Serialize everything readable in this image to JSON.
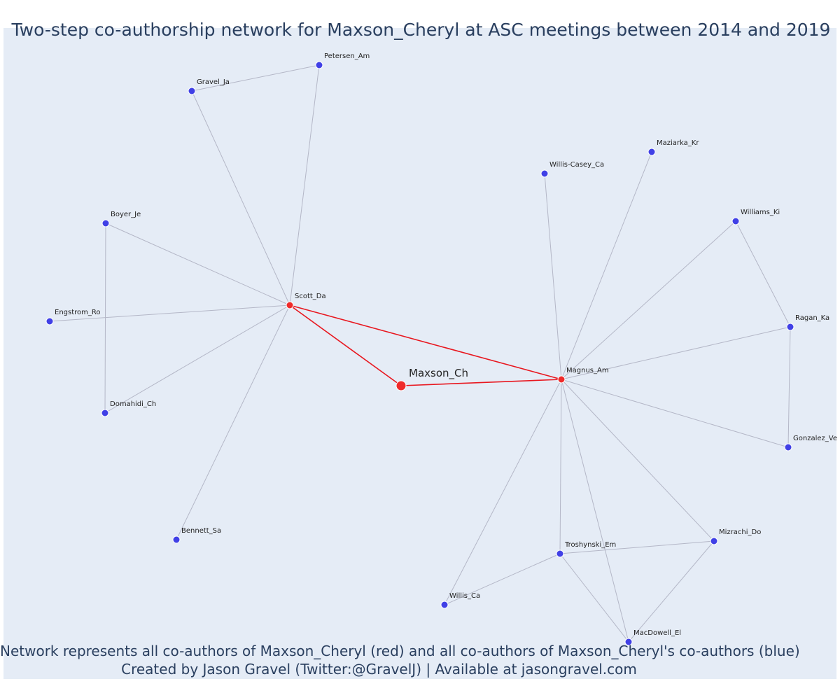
{
  "title": "Two-step co-authorship network for Maxson_Cheryl at ASC meetings between 2014 and 2019",
  "captions": {
    "line1": "Network represents all co-authors of Maxson_Cheryl (red) and all co-authors of Maxson_Cheryl's co-authors (blue)",
    "line2": "Created by Jason Gravel (Twitter:@GravelJ) | Available at jasongravel.com"
  },
  "colors": {
    "background": "#e5ecf6",
    "primary_node": "#ef2b2b",
    "coauthor_node": "#4040e6",
    "primary_edge": "#e8171f",
    "secondary_edge": "#b4b7c7",
    "text": "#2a3f5f"
  },
  "network": {
    "nodes": [
      {
        "id": "Maxson_Ch",
        "label": "Maxson_Ch",
        "group": "focal"
      },
      {
        "id": "Scott_Da",
        "label": "Scott_Da",
        "group": "coauthor"
      },
      {
        "id": "Magnus_Am",
        "label": "Magnus_Am",
        "group": "coauthor"
      },
      {
        "id": "Gravel_Ja",
        "label": "Gravel_Ja",
        "group": "second"
      },
      {
        "id": "Petersen_Am",
        "label": "Petersen_Am",
        "group": "second"
      },
      {
        "id": "Boyer_Je",
        "label": "Boyer_Je",
        "group": "second"
      },
      {
        "id": "Engstrom_Ro",
        "label": "Engstrom_Ro",
        "group": "second"
      },
      {
        "id": "Domahidi_Ch",
        "label": "Domahidi_Ch",
        "group": "second"
      },
      {
        "id": "Bennett_Sa",
        "label": "Bennett_Sa",
        "group": "second"
      },
      {
        "id": "Willis-Casey_Ca",
        "label": "Willis-Casey_Ca",
        "group": "second"
      },
      {
        "id": "Maziarka_Kr",
        "label": "Maziarka_Kr",
        "group": "second"
      },
      {
        "id": "Williams_Ki",
        "label": "Williams_Ki",
        "group": "second"
      },
      {
        "id": "Ragan_Ka",
        "label": "Ragan_Ka",
        "group": "second"
      },
      {
        "id": "Gonzalez_Ve",
        "label": "Gonzalez_Ve",
        "group": "second"
      },
      {
        "id": "Mizrachi_Do",
        "label": "Mizrachi_Do",
        "group": "second"
      },
      {
        "id": "Troshynski_Em",
        "label": "Troshynski_Em",
        "group": "second"
      },
      {
        "id": "Willis_Ca",
        "label": "Willis_Ca",
        "group": "second"
      },
      {
        "id": "MacDowell_El",
        "label": "MacDowell_El",
        "group": "second"
      }
    ],
    "edges": [
      {
        "from": "Maxson_Ch",
        "to": "Scott_Da",
        "type": "primary"
      },
      {
        "from": "Maxson_Ch",
        "to": "Magnus_Am",
        "type": "primary"
      },
      {
        "from": "Scott_Da",
        "to": "Magnus_Am",
        "type": "primary"
      },
      {
        "from": "Scott_Da",
        "to": "Gravel_Ja",
        "type": "secondary"
      },
      {
        "from": "Scott_Da",
        "to": "Petersen_Am",
        "type": "secondary"
      },
      {
        "from": "Gravel_Ja",
        "to": "Petersen_Am",
        "type": "secondary"
      },
      {
        "from": "Scott_Da",
        "to": "Boyer_Je",
        "type": "secondary"
      },
      {
        "from": "Scott_Da",
        "to": "Engstrom_Ro",
        "type": "secondary"
      },
      {
        "from": "Scott_Da",
        "to": "Domahidi_Ch",
        "type": "secondary"
      },
      {
        "from": "Boyer_Je",
        "to": "Domahidi_Ch",
        "type": "secondary"
      },
      {
        "from": "Scott_Da",
        "to": "Bennett_Sa",
        "type": "secondary"
      },
      {
        "from": "Magnus_Am",
        "to": "Willis-Casey_Ca",
        "type": "secondary"
      },
      {
        "from": "Magnus_Am",
        "to": "Maziarka_Kr",
        "type": "secondary"
      },
      {
        "from": "Magnus_Am",
        "to": "Williams_Ki",
        "type": "secondary"
      },
      {
        "from": "Magnus_Am",
        "to": "Ragan_Ka",
        "type": "secondary"
      },
      {
        "from": "Williams_Ki",
        "to": "Ragan_Ka",
        "type": "secondary"
      },
      {
        "from": "Ragan_Ka",
        "to": "Gonzalez_Ve",
        "type": "secondary"
      },
      {
        "from": "Magnus_Am",
        "to": "Gonzalez_Ve",
        "type": "secondary"
      },
      {
        "from": "Magnus_Am",
        "to": "Mizrachi_Do",
        "type": "secondary"
      },
      {
        "from": "Magnus_Am",
        "to": "Troshynski_Em",
        "type": "secondary"
      },
      {
        "from": "Magnus_Am",
        "to": "Willis_Ca",
        "type": "secondary"
      },
      {
        "from": "Magnus_Am",
        "to": "MacDowell_El",
        "type": "secondary"
      },
      {
        "from": "Troshynski_Em",
        "to": "Mizrachi_Do",
        "type": "secondary"
      },
      {
        "from": "Troshynski_Em",
        "to": "Willis_Ca",
        "type": "secondary"
      },
      {
        "from": "Troshynski_Em",
        "to": "MacDowell_El",
        "type": "secondary"
      },
      {
        "from": "Mizrachi_Do",
        "to": "MacDowell_El",
        "type": "secondary"
      }
    ]
  }
}
